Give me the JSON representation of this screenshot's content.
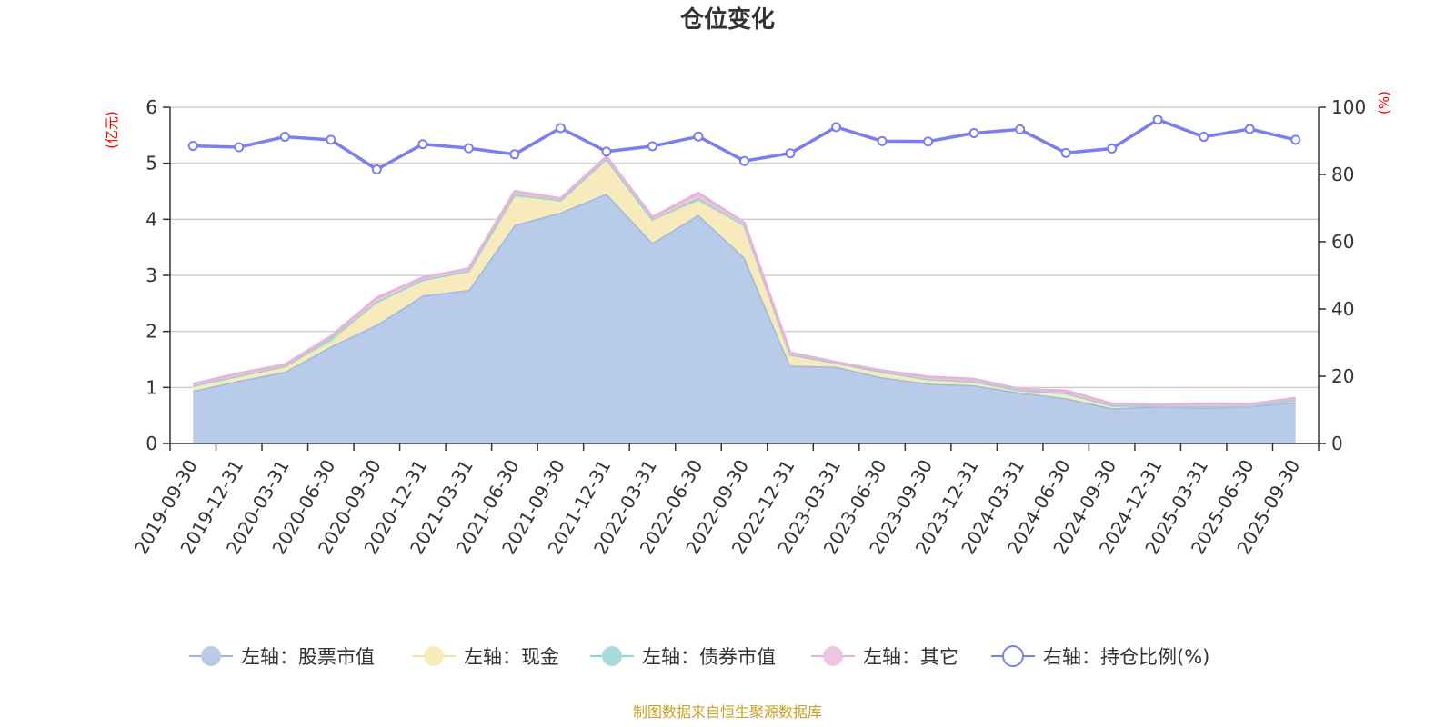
{
  "chart_data": {
    "type": "area",
    "title": "仓位变化",
    "left_axis_unit": "(亿元)",
    "right_axis_unit": "(%)",
    "left_ylim": [
      0,
      6
    ],
    "left_ticks": [
      "0",
      "1",
      "2",
      "3",
      "4",
      "5",
      "6"
    ],
    "right_ylim": [
      0,
      100
    ],
    "right_ticks": [
      "0",
      "20",
      "40",
      "60",
      "80",
      "100"
    ],
    "grid": true,
    "legend_position": "bottom",
    "categories": [
      "2019-09-30",
      "2019-12-31",
      "2020-03-31",
      "2020-06-30",
      "2020-09-30",
      "2020-12-31",
      "2021-03-31",
      "2021-06-30",
      "2021-09-30",
      "2021-12-31",
      "2022-03-31",
      "2022-06-30",
      "2022-09-30",
      "2022-12-31",
      "2023-03-31",
      "2023-06-30",
      "2023-09-30",
      "2023-12-31",
      "2024-03-31",
      "2024-06-30",
      "2024-09-30",
      "2024-12-31",
      "2025-03-31",
      "2025-06-30",
      "2025-09-30"
    ],
    "series": [
      {
        "name": "左轴：股票市值",
        "axis": "left",
        "kind": "stacked-area",
        "color": "#9fb8e0",
        "fill": "#b8cbe9",
        "values": [
          0.94,
          1.12,
          1.28,
          1.73,
          2.12,
          2.64,
          2.74,
          3.9,
          4.12,
          4.46,
          3.58,
          4.08,
          3.32,
          1.39,
          1.37,
          1.18,
          1.07,
          1.04,
          0.91,
          0.81,
          0.63,
          0.66,
          0.64,
          0.66,
          0.74
        ]
      },
      {
        "name": "左轴：现金",
        "axis": "left",
        "kind": "stacked-area",
        "color": "#f5e4a8",
        "fill": "#f7ebbd",
        "values": [
          0.09,
          0.09,
          0.1,
          0.09,
          0.41,
          0.28,
          0.34,
          0.51,
          0.22,
          0.62,
          0.42,
          0.25,
          0.58,
          0.2,
          0.07,
          0.1,
          0.08,
          0.07,
          0.04,
          0.09,
          0.05,
          0.01,
          0.03,
          0.01,
          0.04
        ]
      },
      {
        "name": "左轴：债券市值",
        "axis": "left",
        "kind": "stacked-area",
        "color": "#94d4d4",
        "fill": "#a8dcd8",
        "values": [
          0,
          0,
          0,
          0.06,
          0,
          0,
          0,
          0.04,
          0,
          0,
          0,
          0.05,
          0,
          0,
          0,
          0,
          0,
          0,
          0,
          0,
          0,
          0,
          0,
          0,
          0
        ]
      },
      {
        "name": "左轴：其它",
        "axis": "left",
        "kind": "stacked-area",
        "color": "#e8b4d8",
        "fill": "#efc6e2",
        "values": [
          0.03,
          0.04,
          0.03,
          0.03,
          0.07,
          0.04,
          0.04,
          0.05,
          0.03,
          0.04,
          0.04,
          0.09,
          0.04,
          0.03,
          0.01,
          0.02,
          0.04,
          0.04,
          0.02,
          0.04,
          0.03,
          0.02,
          0.04,
          0.03,
          0.03
        ]
      },
      {
        "name": "右轴：持仓比例(%)",
        "axis": "right",
        "kind": "line",
        "color": "#7b7ef0",
        "values": [
          88.5,
          88.1,
          91.2,
          90.3,
          81.5,
          89.0,
          87.8,
          86.0,
          93.8,
          86.8,
          88.4,
          91.3,
          84.0,
          86.3,
          94.1,
          89.9,
          89.8,
          92.3,
          93.4,
          86.4,
          87.7,
          96.3,
          91.2,
          93.5,
          90.3
        ]
      }
    ]
  },
  "footer": {
    "source": "制图数据来自恒生聚源数据库"
  }
}
